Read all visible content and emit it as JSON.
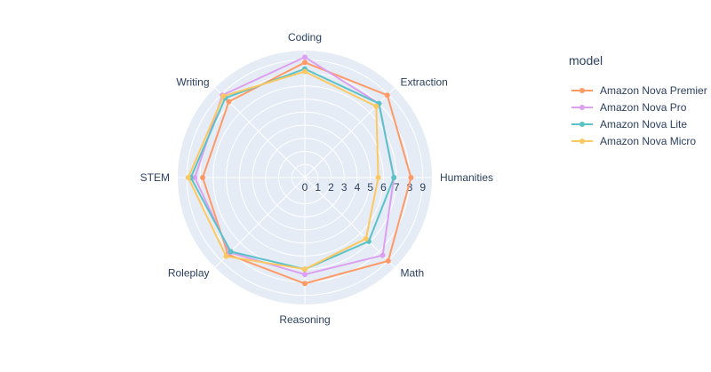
{
  "chart_data": {
    "type": "radar",
    "categories": [
      "Coding",
      "Extraction",
      "Humanities",
      "Math",
      "Reasoning",
      "Roleplay",
      "STEM",
      "Writing"
    ],
    "radial_ticks": [
      "0",
      "1",
      "2",
      "3",
      "4",
      "5",
      "6",
      "7",
      "8",
      "9"
    ],
    "rlim": [
      0,
      9.7
    ],
    "legend_title": "model",
    "legend_position": "top-right",
    "grid": true,
    "series": [
      {
        "name": "Amazon Nova Premier",
        "color": "#FF9A66",
        "values": [
          8.8,
          8.9,
          8.1,
          9.0,
          8.1,
          8.3,
          7.8,
          8.2
        ]
      },
      {
        "name": "Amazon Nova Pro",
        "color": "#DDA0F0",
        "values": [
          9.2,
          8.0,
          6.8,
          8.4,
          7.4,
          8.1,
          8.4,
          8.9
        ]
      },
      {
        "name": "Amazon Nova Lite",
        "color": "#5BC2C8",
        "values": [
          8.3,
          8.0,
          6.8,
          6.9,
          7.0,
          8.0,
          8.7,
          8.6
        ]
      },
      {
        "name": "Amazon Nova Micro",
        "color": "#FDC861",
        "values": [
          8.1,
          7.7,
          5.6,
          6.6,
          7.0,
          8.5,
          8.9,
          8.8
        ]
      }
    ]
  }
}
